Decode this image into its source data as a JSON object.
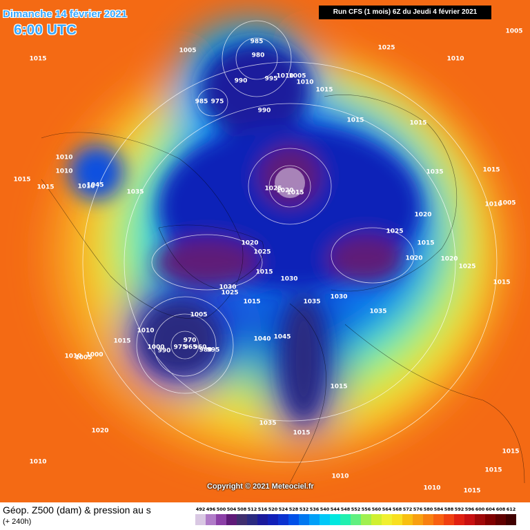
{
  "header": {
    "date": "Dimanche 14 février 2021",
    "time": "6:00 UTC",
    "run": "Run CFS (1 mois) 6Z du Jeudi 4 février 2021"
  },
  "map": {
    "isobar_labels": [
      "1015",
      "1005",
      "985",
      "980",
      "990",
      "995",
      "1010",
      "1005",
      "1010",
      "1015",
      "985",
      "975",
      "990",
      "1025",
      "1010",
      "1005",
      "1015",
      "1015",
      "1010",
      "1010",
      "1015",
      "1015",
      "1010",
      "1045",
      "1035",
      "1025",
      "1020",
      "1015",
      "1035",
      "1015",
      "1010",
      "1005",
      "1020",
      "1025",
      "1015",
      "1020",
      "1025",
      "1020",
      "1020",
      "1025",
      "1015",
      "1030",
      "1015",
      "1030",
      "1025",
      "1015",
      "1035",
      "1030",
      "1035",
      "1005",
      "1010",
      "1015",
      "1040",
      "1045",
      "1000",
      "990",
      "970",
      "975",
      "965",
      "960",
      "980",
      "995",
      "1010",
      "1005",
      "1000",
      "1015",
      "1035",
      "1015",
      "1020",
      "1010",
      "1015",
      "1015",
      "1010",
      "1015",
      "1010"
    ]
  },
  "copyright": "Copyright © 2021 Meteociel.fr",
  "footer": {
    "title": "Géop. Z500 (dam) & pression au s",
    "subtitle": "(+ 240h)"
  },
  "legend": {
    "values": [
      492,
      496,
      500,
      504,
      508,
      512,
      516,
      520,
      524,
      528,
      532,
      536,
      540,
      544,
      548,
      552,
      556,
      560,
      564,
      568,
      572,
      576,
      580,
      584,
      588,
      592,
      596,
      600,
      604,
      608,
      612
    ],
    "colors": [
      "#d9c8e3",
      "#b07cc8",
      "#8b3fa7",
      "#5e1a78",
      "#3f2e6e",
      "#2a2a80",
      "#1a1a9c",
      "#1020b8",
      "#0a32d0",
      "#0050e8",
      "#0078f0",
      "#00a0f8",
      "#00c8f8",
      "#00e8e0",
      "#20f0b0",
      "#60f080",
      "#a0f050",
      "#d0f030",
      "#f0f030",
      "#f8e020",
      "#f8c010",
      "#f8a010",
      "#f88010",
      "#f86010",
      "#f04010",
      "#e02010",
      "#c81010",
      "#a00808",
      "#800000",
      "#600000",
      "#400000"
    ]
  }
}
